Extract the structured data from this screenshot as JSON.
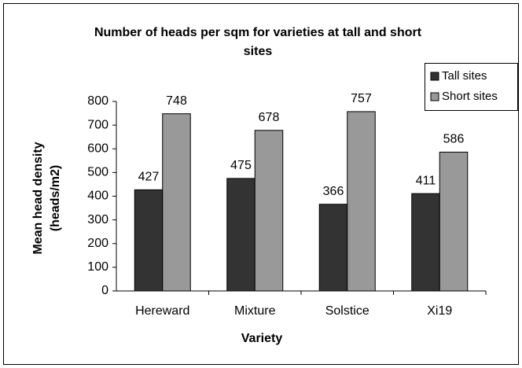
{
  "chart_data": {
    "type": "bar",
    "title": "Number of heads  per sqm for varieties at tall and short sites",
    "x_label": "Variety",
    "y_label": "Mean head density (heads/m2)",
    "categories": [
      "Hereward",
      "Mixture",
      "Solstice",
      "Xi19"
    ],
    "series": [
      {
        "name": "Tall sites",
        "color": "#333333",
        "values": [
          427,
          475,
          366,
          411
        ]
      },
      {
        "name": "Short sites",
        "color": "#999999",
        "values": [
          748,
          678,
          757,
          586
        ]
      }
    ],
    "ylim": [
      0,
      800
    ],
    "yticks": [
      0,
      100,
      200,
      300,
      400,
      500,
      600,
      700,
      800
    ],
    "grid": false,
    "legend": "top-right"
  }
}
